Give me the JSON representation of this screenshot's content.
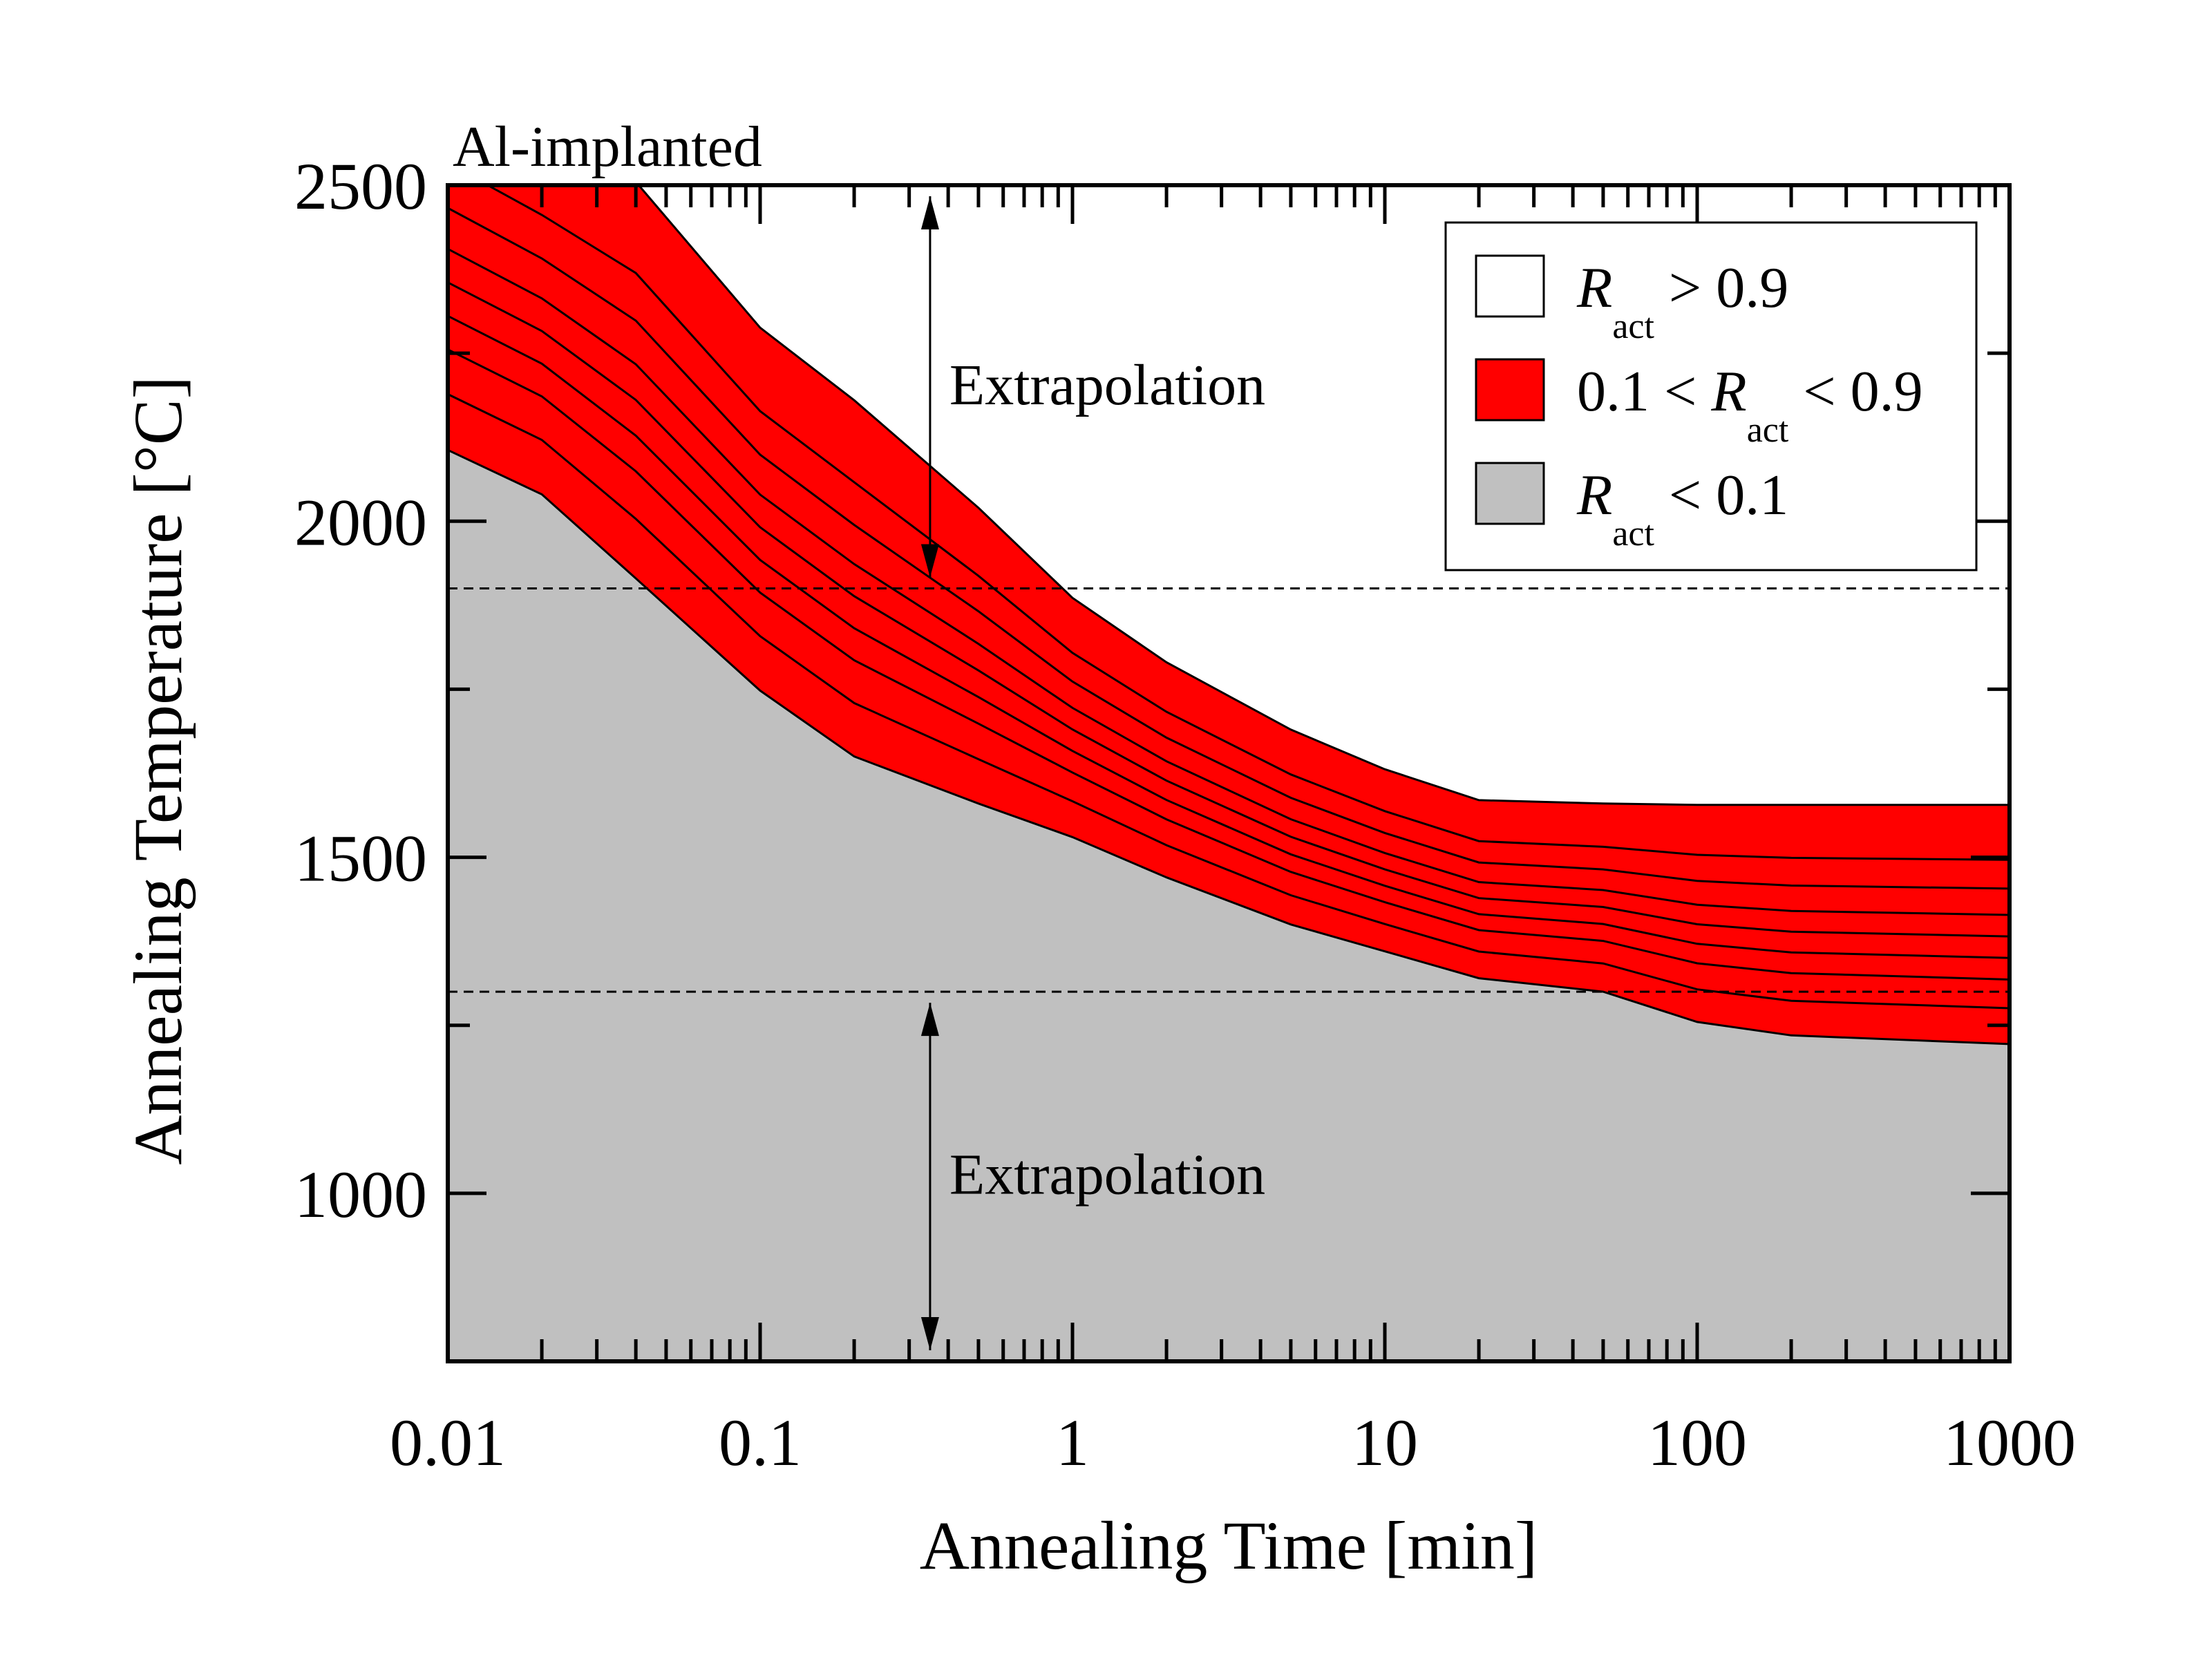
{
  "chart_data": {
    "type": "area",
    "title": "",
    "corner_label": "Al-implanted",
    "xlabel": "Annealing Time [min]",
    "ylabel": "Annealing Temperature [°C]",
    "xscale": "log",
    "xlim": [
      0.01,
      1000
    ],
    "ylim": [
      750,
      2500
    ],
    "x_ticks": [
      0.01,
      0.1,
      1,
      10,
      100,
      1000
    ],
    "x_tick_labels": [
      "0.01",
      "0.1",
      "1",
      "10",
      "100",
      "1000"
    ],
    "y_ticks": [
      1000,
      1500,
      2000,
      2500
    ],
    "y_tick_labels": [
      "1000",
      "1500",
      "2000",
      "2500"
    ],
    "y_minor_ticks": [
      750,
      1250,
      1750,
      2250
    ],
    "grid": false,
    "x": [
      0.01,
      0.02,
      0.04,
      0.1,
      0.2,
      0.5,
      1,
      2,
      5,
      10,
      20,
      50,
      100,
      200,
      1000
    ],
    "series": [
      {
        "name": "R_act = 0.1 (lower boundary)",
        "values": [
          2106,
          2040,
          1915,
          1748,
          1650,
          1580,
          1530,
          1470,
          1400,
          1360,
          1320,
          1300,
          1255,
          1235,
          1222
        ]
      },
      {
        "name": "R_act = 0.9 (upper boundary)",
        "values": [
          2660,
          2580,
          2505,
          2288,
          2180,
          2020,
          1886,
          1790,
          1690,
          1631,
          1585,
          1580,
          1578,
          1578,
          1578
        ]
      }
    ],
    "contour_levels": [
      0.2,
      0.3,
      0.4,
      0.5,
      0.6,
      0.7,
      0.8
    ],
    "contour_fractions": [
      0.15,
      0.27,
      0.36,
      0.45,
      0.54,
      0.65,
      0.77
    ],
    "regions": [
      {
        "label_prefix": "",
        "symbol": "R",
        "sub": "act",
        "label_suffix": " > 0.9",
        "color": "#ffffff"
      },
      {
        "label_prefix": "0.1 < ",
        "symbol": "R",
        "sub": "act",
        "label_suffix": " < 0.9",
        "color": "#ff0000"
      },
      {
        "label_prefix": "",
        "symbol": "R",
        "sub": "act",
        "label_suffix": " < 0.1",
        "color": "#c0c0c0"
      }
    ],
    "legend_position": "top-right",
    "reference_lines": [
      {
        "y": 1900,
        "style": "dashed"
      },
      {
        "y": 1300,
        "style": "dashed"
      }
    ],
    "annotations": [
      {
        "text": "Extrapolation",
        "arrow_x": 0.35,
        "arrow_y_from": 2500,
        "arrow_y_to": 1900
      },
      {
        "text": "Extrapolation",
        "arrow_x": 0.35,
        "arrow_y_from": 1300,
        "arrow_y_to": 750
      }
    ]
  }
}
